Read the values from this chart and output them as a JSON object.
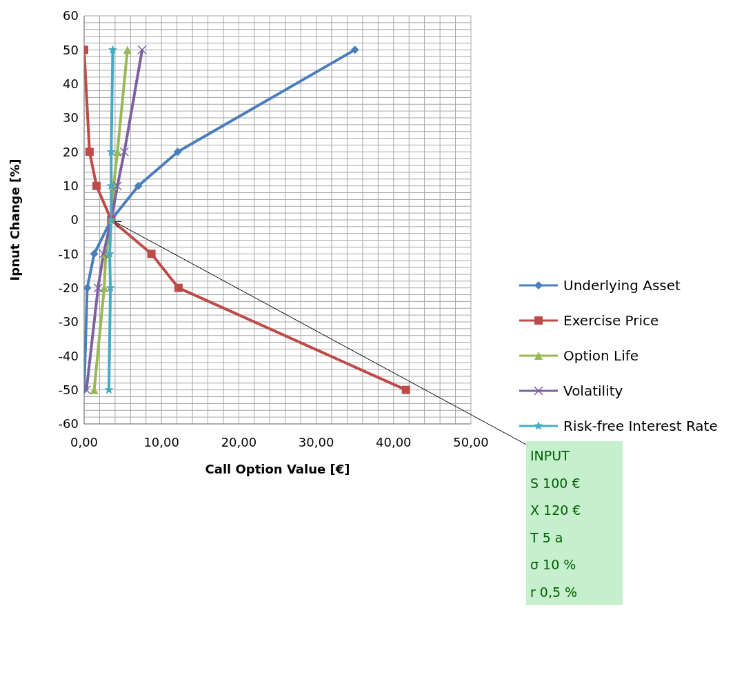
{
  "chart_data": {
    "type": "line",
    "xlabel": "Call Option Value [€]",
    "ylabel": "Ipnut Change [%]",
    "xlim": [
      0,
      50
    ],
    "xticks": [
      {
        "value": 0,
        "label": "0,00"
      },
      {
        "value": 2,
        "label": null
      },
      {
        "value": 4,
        "label": null
      },
      {
        "value": 6,
        "label": null
      },
      {
        "value": 8,
        "label": null
      },
      {
        "value": 10,
        "label": "10,00"
      },
      {
        "value": 12,
        "label": null
      },
      {
        "value": 14,
        "label": null
      },
      {
        "value": 16,
        "label": null
      },
      {
        "value": 18,
        "label": null
      },
      {
        "value": 20,
        "label": "20,00"
      },
      {
        "value": 22,
        "label": null
      },
      {
        "value": 24,
        "label": null
      },
      {
        "value": 26,
        "label": null
      },
      {
        "value": 28,
        "label": null
      },
      {
        "value": 30,
        "label": "30,00"
      },
      {
        "value": 32,
        "label": null
      },
      {
        "value": 34,
        "label": null
      },
      {
        "value": 36,
        "label": null
      },
      {
        "value": 38,
        "label": null
      },
      {
        "value": 40,
        "label": "40,00"
      },
      {
        "value": 42,
        "label": null
      },
      {
        "value": 44,
        "label": null
      },
      {
        "value": 46,
        "label": null
      },
      {
        "value": 48,
        "label": null
      },
      {
        "value": 50,
        "label": "50,00"
      }
    ],
    "ylim": [
      -60,
      60
    ],
    "yticks": [
      -60,
      {
        "value": -58,
        "label": null
      },
      {
        "value": -56,
        "label": null
      },
      {
        "value": -54,
        "label": null
      },
      {
        "value": -52,
        "label": null
      },
      -50,
      {
        "value": -48,
        "label": null
      },
      {
        "value": -46,
        "label": null
      },
      {
        "value": -44,
        "label": null
      },
      {
        "value": -42,
        "label": null
      },
      -40,
      {
        "value": -38,
        "label": null
      },
      {
        "value": -36,
        "label": null
      },
      {
        "value": -34,
        "label": null
      },
      {
        "value": -32,
        "label": null
      },
      -30,
      {
        "value": -28,
        "label": null
      },
      {
        "value": -26,
        "label": null
      },
      {
        "value": -24,
        "label": null
      },
      {
        "value": -22,
        "label": null
      },
      -20,
      {
        "value": -18,
        "label": null
      },
      {
        "value": -16,
        "label": null
      },
      {
        "value": -14,
        "label": null
      },
      {
        "value": -12,
        "label": null
      },
      -10,
      {
        "value": -8,
        "label": null
      },
      {
        "value": -6,
        "label": null
      },
      {
        "value": -4,
        "label": null
      },
      {
        "value": -2,
        "label": null
      },
      0,
      {
        "value": 2,
        "label": null
      },
      {
        "value": 4,
        "label": null
      },
      {
        "value": 6,
        "label": null
      },
      {
        "value": 8,
        "label": null
      },
      10,
      {
        "value": 12,
        "label": null
      },
      {
        "value": 14,
        "label": null
      },
      {
        "value": 16,
        "label": null
      },
      {
        "value": 18,
        "label": null
      },
      20,
      {
        "value": 22,
        "label": null
      },
      {
        "value": 24,
        "label": null
      },
      {
        "value": 26,
        "label": null
      },
      {
        "value": 28,
        "label": null
      },
      30,
      {
        "value": 32,
        "label": null
      },
      {
        "value": 34,
        "label": null
      },
      {
        "value": 36,
        "label": null
      },
      {
        "value": 38,
        "label": null
      },
      40,
      {
        "value": 42,
        "label": null
      },
      {
        "value": 44,
        "label": null
      },
      {
        "value": 46,
        "label": null
      },
      {
        "value": 48,
        "label": null
      },
      50,
      {
        "value": 52,
        "label": null
      },
      {
        "value": 54,
        "label": null
      },
      {
        "value": 56,
        "label": null
      },
      {
        "value": 58,
        "label": null
      },
      60
    ],
    "grid": true,
    "legend": "right",
    "line_style": "solid",
    "series": [
      {
        "name": "Underlying Asset",
        "color": "#4a7ebb",
        "marker": "diamond",
        "x": [
          35,
          12.1,
          7,
          3.5,
          1.3,
          0.4,
          0
        ],
        "values": [
          50,
          20,
          10,
          0,
          -10,
          -20,
          -50
        ]
      },
      {
        "name": "Exercise Price",
        "color": "#be4b48",
        "marker": "square",
        "x": [
          0,
          0.7,
          1.6,
          3.5,
          8.7,
          12.2,
          41.6
        ],
        "values": [
          50,
          20,
          10,
          0,
          -10,
          -20,
          -50
        ]
      },
      {
        "name": "Option Life",
        "color": "#98b954",
        "marker": "triangle",
        "x": [
          5.6,
          4.3,
          3.8,
          3.5,
          2.8,
          2.6,
          1.3
        ],
        "values": [
          50,
          20,
          10,
          0,
          -10,
          -20,
          -50
        ]
      },
      {
        "name": "Volatility",
        "color": "#7d60a0",
        "marker": "cross",
        "x": [
          7.5,
          5.2,
          4.3,
          3.5,
          2.5,
          1.8,
          0.3
        ],
        "values": [
          50,
          20,
          10,
          0,
          -10,
          -20,
          -50
        ]
      },
      {
        "name": "Risk-free Interest Rate",
        "color": "#46aac5",
        "marker": "star",
        "x": [
          3.7,
          3.5,
          3.5,
          3.5,
          3.3,
          3.4,
          3.2
        ],
        "values": [
          50,
          20,
          10,
          0,
          -10,
          -20,
          -50
        ]
      }
    ],
    "annotations": [
      {
        "text": "INPUT",
        "x": 3.5,
        "y": 0
      },
      "S 100 €",
      "X 120 €",
      "T 5 a",
      "σ 10 %",
      "r 0,5 %"
    ]
  }
}
